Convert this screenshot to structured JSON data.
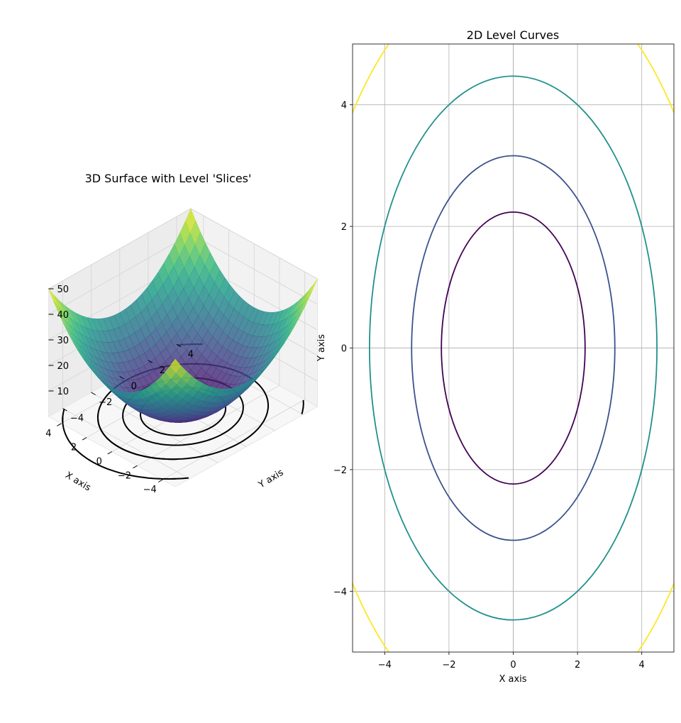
{
  "chart_data": [
    {
      "type": "surface3d",
      "title": "3D Surface with Level 'Slices'",
      "xlabel": "X axis",
      "ylabel": "Y axis",
      "zlabel": "",
      "function": "x^2 + y^2",
      "xlim": [
        -5,
        5
      ],
      "ylim": [
        -5,
        5
      ],
      "zlim": [
        0,
        50
      ],
      "x_ticks": [
        -4,
        -2,
        0,
        2,
        4
      ],
      "y_ticks": [
        -4,
        -2,
        0,
        2,
        4
      ],
      "z_ticks": [
        10,
        20,
        30,
        40,
        50
      ],
      "slice_levels": [
        5,
        10,
        20,
        40
      ],
      "colormap": "viridis",
      "slice_color": "#000000",
      "grid": true
    },
    {
      "type": "contour",
      "title": "2D Level Curves",
      "xlabel": "X axis",
      "ylabel": "Y axis",
      "function": "x^2 + y^2",
      "xlim": [
        -5,
        5
      ],
      "ylim": [
        -5,
        5
      ],
      "x_ticks": [
        -4,
        -2,
        0,
        2,
        4
      ],
      "y_ticks": [
        -4,
        -2,
        0,
        2,
        4
      ],
      "levels": [
        5,
        10,
        20,
        40
      ],
      "level_colors": [
        "#440154",
        "#3b528b",
        "#21918c",
        "#fde725"
      ],
      "grid": true
    }
  ]
}
